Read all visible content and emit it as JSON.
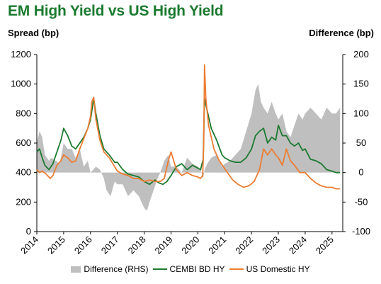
{
  "chart_data": {
    "type": "line",
    "title": "EM High Yield vs US High Yield",
    "ylabel": "Spread (bp)",
    "y2label": "Difference (bp)",
    "ylim": [
      0,
      1200
    ],
    "y2lim": [
      -100,
      200
    ],
    "yticks": [
      "0",
      "200",
      "400",
      "600",
      "800",
      "1000",
      "1200"
    ],
    "y2ticks": [
      "-100",
      "-50",
      "0",
      "50",
      "100",
      "150",
      "200"
    ],
    "xlim": [
      2014.0,
      2025.4
    ],
    "xticks": [
      "2014",
      "2015",
      "2016",
      "2017",
      "2018",
      "2019",
      "2020",
      "2021",
      "2022",
      "2023",
      "2024",
      "2025"
    ],
    "legend_position": "bottom",
    "colors": {
      "title": "#1b7a2f",
      "difference": "#bfbfbf",
      "cembi": "#1b7a2f",
      "us": "#ed7d31"
    },
    "series": [
      {
        "name": "Difference (RHS)",
        "kind": "area",
        "axis": "right",
        "x": [
          2014.0,
          2014.1,
          2014.2,
          2014.3,
          2014.45,
          2014.55,
          2014.7,
          2014.85,
          2015.0,
          2015.15,
          2015.3,
          2015.45,
          2015.6,
          2015.75,
          2015.9,
          2016.0,
          2016.1,
          2016.2,
          2016.35,
          2016.5,
          2016.6,
          2016.75,
          2016.9,
          2017.0,
          2017.2,
          2017.4,
          2017.6,
          2017.8,
          2018.0,
          2018.1,
          2018.2,
          2018.35,
          2018.5,
          2018.6,
          2018.75,
          2018.9,
          2019.0,
          2019.2,
          2019.4,
          2019.6,
          2019.8,
          2020.0,
          2020.1,
          2020.2,
          2020.25,
          2020.35,
          2020.5,
          2020.7,
          2020.9,
          2021.0,
          2021.2,
          2021.4,
          2021.6,
          2021.8,
          2022.0,
          2022.15,
          2022.25,
          2022.35,
          2022.45,
          2022.6,
          2022.75,
          2022.9,
          2023.0,
          2023.15,
          2023.3,
          2023.45,
          2023.6,
          2023.75,
          2023.9,
          2024.0,
          2024.2,
          2024.4,
          2024.6,
          2024.8,
          2025.0,
          2025.15,
          2025.3
        ],
        "values": [
          50,
          70,
          60,
          30,
          20,
          25,
          20,
          15,
          50,
          40,
          40,
          25,
          40,
          10,
          20,
          0,
          5,
          10,
          5,
          -10,
          -30,
          -40,
          -15,
          -20,
          -20,
          -40,
          -30,
          -40,
          -60,
          -65,
          -50,
          -30,
          -10,
          0,
          20,
          30,
          10,
          10,
          0,
          25,
          15,
          10,
          5,
          -10,
          5,
          15,
          25,
          30,
          10,
          15,
          20,
          30,
          40,
          70,
          100,
          140,
          150,
          120,
          110,
          100,
          120,
          100,
          90,
          100,
          70,
          60,
          80,
          100,
          90,
          100,
          110,
          100,
          90,
          110,
          100,
          100,
          110
        ]
      },
      {
        "name": "CEMBI BD HY",
        "kind": "line",
        "axis": "left",
        "x": [
          2014.0,
          2014.1,
          2014.2,
          2014.3,
          2014.45,
          2014.6,
          2014.75,
          2014.9,
          2015.0,
          2015.15,
          2015.3,
          2015.45,
          2015.6,
          2015.75,
          2015.9,
          2016.0,
          2016.05,
          2016.12,
          2016.2,
          2016.35,
          2016.5,
          2016.7,
          2016.9,
          2017.0,
          2017.2,
          2017.4,
          2017.6,
          2017.8,
          2018.0,
          2018.2,
          2018.4,
          2018.55,
          2018.7,
          2018.85,
          2019.0,
          2019.2,
          2019.4,
          2019.6,
          2019.8,
          2020.0,
          2020.1,
          2020.2,
          2020.25,
          2020.35,
          2020.5,
          2020.7,
          2020.9,
          2021.0,
          2021.2,
          2021.4,
          2021.6,
          2021.8,
          2022.0,
          2022.15,
          2022.3,
          2022.45,
          2022.6,
          2022.75,
          2022.9,
          2023.0,
          2023.15,
          2023.3,
          2023.45,
          2023.6,
          2023.75,
          2023.9,
          2024.0,
          2024.2,
          2024.4,
          2024.6,
          2024.8,
          2025.0,
          2025.15,
          2025.3
        ],
        "values": [
          540,
          560,
          500,
          450,
          420,
          460,
          540,
          620,
          700,
          650,
          580,
          560,
          600,
          640,
          700,
          760,
          820,
          900,
          800,
          650,
          560,
          520,
          470,
          470,
          420,
          390,
          380,
          370,
          340,
          320,
          350,
          330,
          320,
          340,
          380,
          440,
          460,
          420,
          450,
          430,
          420,
          490,
          900,
          820,
          700,
          620,
          520,
          500,
          480,
          470,
          470,
          500,
          560,
          650,
          680,
          700,
          600,
          640,
          620,
          720,
          650,
          650,
          600,
          580,
          600,
          550,
          560,
          490,
          480,
          460,
          420,
          410,
          400,
          400
        ]
      },
      {
        "name": "US Domestic HY",
        "kind": "line",
        "axis": "left",
        "x": [
          2014.0,
          2014.1,
          2014.2,
          2014.35,
          2014.5,
          2014.6,
          2014.75,
          2014.9,
          2015.0,
          2015.15,
          2015.3,
          2015.45,
          2015.6,
          2015.75,
          2015.9,
          2016.0,
          2016.05,
          2016.12,
          2016.2,
          2016.35,
          2016.5,
          2016.7,
          2016.9,
          2017.0,
          2017.2,
          2017.4,
          2017.6,
          2017.8,
          2018.0,
          2018.2,
          2018.4,
          2018.6,
          2018.75,
          2018.9,
          2019.0,
          2019.2,
          2019.4,
          2019.6,
          2019.8,
          2020.0,
          2020.1,
          2020.18,
          2020.22,
          2020.25,
          2020.3,
          2020.4,
          2020.6,
          2020.8,
          2020.95,
          2021.1,
          2021.3,
          2021.5,
          2021.7,
          2021.9,
          2022.1,
          2022.3,
          2022.45,
          2022.6,
          2022.75,
          2022.9,
          2023.0,
          2023.15,
          2023.3,
          2023.45,
          2023.6,
          2023.8,
          2024.0,
          2024.2,
          2024.4,
          2024.6,
          2024.8,
          2025.0,
          2025.15,
          2025.3
        ],
        "values": [
          420,
          400,
          410,
          390,
          360,
          380,
          450,
          480,
          520,
          500,
          470,
          480,
          560,
          630,
          700,
          780,
          880,
          910,
          760,
          620,
          540,
          500,
          440,
          410,
          390,
          380,
          360,
          360,
          340,
          350,
          340,
          340,
          360,
          480,
          540,
          420,
          380,
          400,
          380,
          370,
          360,
          380,
          600,
          1130,
          900,
          720,
          560,
          480,
          440,
          400,
          350,
          320,
          300,
          310,
          340,
          420,
          560,
          520,
          560,
          520,
          500,
          450,
          560,
          480,
          450,
          400,
          400,
          360,
          330,
          310,
          300,
          300,
          290,
          290
        ]
      }
    ]
  }
}
